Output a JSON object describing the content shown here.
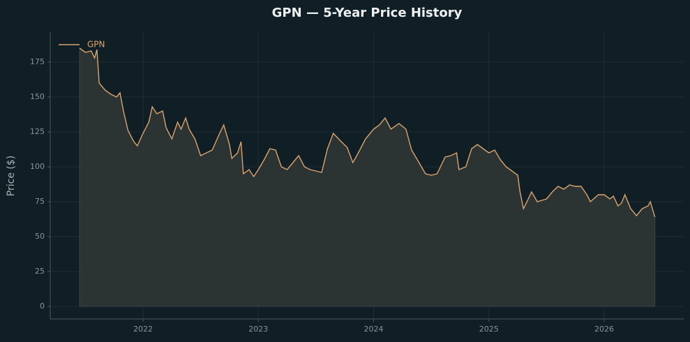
{
  "chart_data": {
    "type": "line",
    "title": "GPN — 5-Year Price History",
    "ylabel": "Price ($)",
    "x": [
      2021.45,
      2021.5,
      2021.55,
      2021.58,
      2021.6,
      2021.62,
      2021.67,
      2021.72,
      2021.77,
      2021.8,
      2021.83,
      2021.87,
      2021.92,
      2021.95,
      2022.0,
      2022.05,
      2022.08,
      2022.12,
      2022.17,
      2022.2,
      2022.25,
      2022.3,
      2022.33,
      2022.37,
      2022.4,
      2022.45,
      2022.5,
      2022.55,
      2022.6,
      2022.67,
      2022.7,
      2022.75,
      2022.77,
      2022.82,
      2022.85,
      2022.87,
      2022.92,
      2022.96,
      2023.0,
      2023.05,
      2023.1,
      2023.15,
      2023.2,
      2023.25,
      2023.3,
      2023.35,
      2023.4,
      2023.45,
      2023.5,
      2023.55,
      2023.6,
      2023.65,
      2023.72,
      2023.77,
      2023.82,
      2023.88,
      2023.93,
      2024.0,
      2024.05,
      2024.1,
      2024.15,
      2024.22,
      2024.28,
      2024.33,
      2024.38,
      2024.45,
      2024.5,
      2024.55,
      2024.58,
      2024.62,
      2024.67,
      2024.72,
      2024.74,
      2024.8,
      2024.85,
      2024.9,
      2024.95,
      2025.0,
      2025.05,
      2025.1,
      2025.15,
      2025.2,
      2025.25,
      2025.27,
      2025.3,
      2025.33,
      2025.37,
      2025.42,
      2025.5,
      2025.55,
      2025.6,
      2025.65,
      2025.7,
      2025.75,
      2025.8,
      2025.85,
      2025.88,
      2025.95,
      2026.0,
      2026.05,
      2026.08,
      2026.12,
      2026.15,
      2026.18,
      2026.23,
      2026.28,
      2026.33,
      2026.38,
      2026.4,
      2026.44
    ],
    "series": [
      {
        "name": "GPN",
        "color": "#dba46c",
        "values": [
          185,
          182,
          183,
          178,
          184,
          160,
          155,
          152,
          150,
          153,
          140,
          126,
          118,
          115,
          124,
          132,
          143,
          138,
          140,
          128,
          120,
          132,
          127,
          135,
          127,
          120,
          108,
          110,
          112,
          125,
          130,
          116,
          106,
          110,
          118,
          95,
          98,
          93,
          98,
          105,
          113,
          112,
          100,
          98,
          103,
          108,
          100,
          98,
          97,
          96,
          113,
          124,
          118,
          114,
          103,
          112,
          120,
          127,
          130,
          135,
          127,
          131,
          127,
          112,
          105,
          95,
          94,
          95,
          100,
          107,
          108,
          110,
          98,
          100,
          113,
          116,
          113,
          110,
          112,
          105,
          100,
          97,
          94,
          82,
          70,
          75,
          82,
          75,
          77,
          82,
          86,
          84,
          87,
          86,
          86,
          80,
          75,
          80,
          80,
          77,
          79,
          72,
          74,
          80,
          70,
          65,
          70,
          72,
          75,
          64
        ]
      }
    ],
    "xlim": [
      2021.195,
      2026.69
    ],
    "xticks": [
      2022,
      2023,
      2024,
      2025,
      2026
    ],
    "ylim": [
      -9,
      196.5
    ],
    "yticks": [
      0,
      25,
      50,
      75,
      100,
      125,
      150,
      175
    ],
    "grid": true,
    "fill": "#2c3333",
    "legend": "upper left"
  }
}
